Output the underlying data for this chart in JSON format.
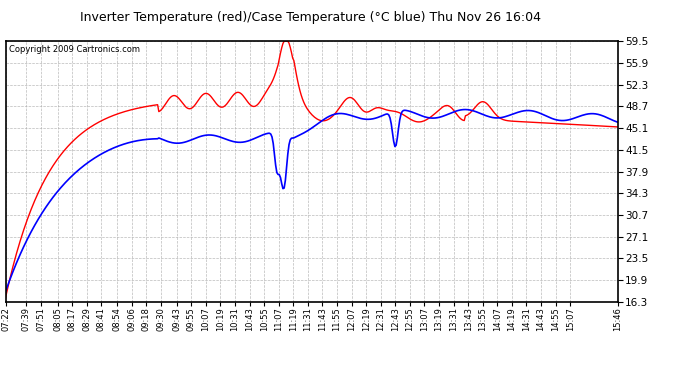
{
  "title": "Inverter Temperature (red)/Case Temperature (°C blue) Thu Nov 26 16:04",
  "copyright": "Copyright 2009 Cartronics.com",
  "yticks": [
    16.3,
    19.9,
    23.5,
    27.1,
    30.7,
    34.3,
    37.9,
    41.5,
    45.1,
    48.7,
    52.3,
    55.9,
    59.5
  ],
  "ymin": 16.3,
  "ymax": 59.5,
  "bg_color": "#ffffff",
  "plot_bg_color": "#ffffff",
  "grid_color": "#aaaaaa",
  "red_color": "#ff0000",
  "blue_color": "#0000ff",
  "x_labels": [
    "07:22",
    "07:39",
    "07:51",
    "08:05",
    "08:17",
    "08:29",
    "08:41",
    "08:54",
    "09:06",
    "09:18",
    "09:30",
    "09:43",
    "09:55",
    "10:07",
    "10:19",
    "10:31",
    "10:43",
    "10:55",
    "11:07",
    "11:19",
    "11:31",
    "11:43",
    "11:55",
    "12:07",
    "12:19",
    "12:31",
    "12:43",
    "12:55",
    "13:07",
    "13:19",
    "13:31",
    "13:43",
    "13:55",
    "14:07",
    "14:19",
    "14:31",
    "14:43",
    "14:55",
    "15:07",
    "15:46"
  ]
}
